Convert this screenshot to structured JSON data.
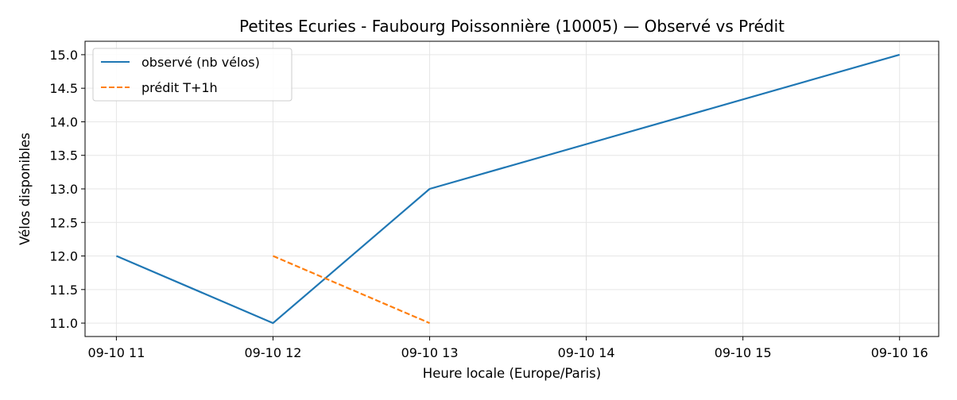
{
  "chart_data": {
    "type": "line",
    "title": "Petites Ecuries - Faubourg Poissonnière (10005) — Observé vs Prédit",
    "xlabel": "Heure locale (Europe/Paris)",
    "ylabel": "Vélos disponibles",
    "x_ticks": [
      "09-10 11",
      "09-10 12",
      "09-10 13",
      "09-10 14",
      "09-10 15",
      "09-10 16"
    ],
    "xlim": [
      "09-10 10:48",
      "09-10 16:15"
    ],
    "ylim": [
      10.8,
      15.2
    ],
    "y_ticks": [
      11.0,
      11.5,
      12.0,
      12.5,
      13.0,
      13.5,
      14.0,
      14.5,
      15.0
    ],
    "grid": true,
    "legend_position": "top-left",
    "series": [
      {
        "name": "observé (nb vélos)",
        "color": "#1f77b4",
        "dash": "solid",
        "x": [
          "09-10 11:00",
          "09-10 12:00",
          "09-10 13:00",
          "09-10 16:00"
        ],
        "y": [
          12,
          11,
          13,
          15
        ]
      },
      {
        "name": "prédit T+1h",
        "color": "#ff7f0e",
        "dash": "dashed",
        "x": [
          "09-10 12:00",
          "09-10 13:00"
        ],
        "y": [
          12,
          11
        ]
      }
    ]
  }
}
